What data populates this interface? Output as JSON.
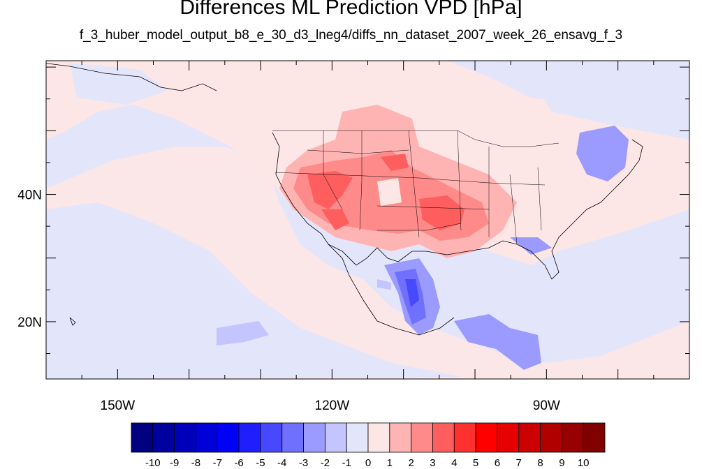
{
  "title": "Differences ML Prediction VPD [hPa]",
  "subtitle": "f_3_huber_model_output_b8_e_30_d3_lneg4/diffs_nn_dataset_2007_week_26_ensavg_f_3",
  "map": {
    "lon_range": [
      -160,
      -70
    ],
    "lat_range": [
      11,
      61
    ],
    "lat_labels": [
      "40N",
      "20N"
    ],
    "lat_values": [
      40,
      20
    ],
    "lon_labels": [
      "150W",
      "120W",
      "90W"
    ],
    "lon_values": [
      -150,
      -120,
      -90
    ],
    "background_color": "#e3e5fb"
  },
  "colorbar": {
    "labels": [
      "-10",
      "-9",
      "-8",
      "-7",
      "-6",
      "-5",
      "-4",
      "-3",
      "-2",
      "-1",
      "0",
      "1",
      "2",
      "3",
      "4",
      "5",
      "6",
      "7",
      "8",
      "9",
      "10"
    ],
    "colors": [
      "#000080",
      "#00009e",
      "#0000bb",
      "#0000d9",
      "#0000f6",
      "#1e1eff",
      "#4848ff",
      "#7070ff",
      "#9a9aff",
      "#c4c4ff",
      "#e3e5fb",
      "#fde6e6",
      "#ffb4b4",
      "#ff8a8a",
      "#ff5e5e",
      "#ff3030",
      "#ff0000",
      "#e60000",
      "#cc0000",
      "#b00000",
      "#960000",
      "#800000"
    ]
  }
}
